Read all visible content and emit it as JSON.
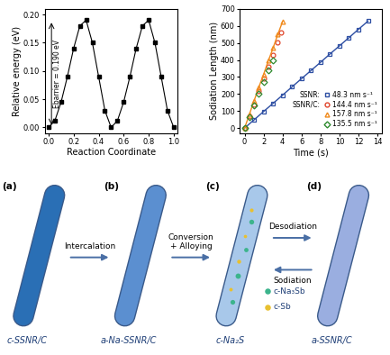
{
  "chart_data": [
    {
      "type": "line",
      "xlabel": "Reaction Coordinate",
      "ylabel": "Relative energy (eV)",
      "annotations": [
        {
          "text": "Ebarrier = 0.190 eV"
        }
      ],
      "x": [
        0.0,
        0.05,
        0.1,
        0.15,
        0.2,
        0.25,
        0.3,
        0.35,
        0.4,
        0.45,
        0.5,
        0.55,
        0.6,
        0.65,
        0.7,
        0.75,
        0.8,
        0.85,
        0.9,
        0.95,
        1.0
      ],
      "values": [
        0.0,
        0.012,
        0.045,
        0.09,
        0.14,
        0.18,
        0.19,
        0.15,
        0.09,
        0.03,
        0.0,
        0.012,
        0.045,
        0.09,
        0.14,
        0.18,
        0.19,
        0.15,
        0.09,
        0.03,
        0.0
      ],
      "color": "#000000",
      "marker": "square",
      "line_style": "solid",
      "xlim": [
        -0.03,
        1.03
      ],
      "ylim": [
        -0.01,
        0.21
      ],
      "xticks": [
        0.0,
        0.2,
        0.4,
        0.6,
        0.8,
        1.0
      ],
      "yticks": [
        {
          "value": 0.0,
          "label": "0.00"
        },
        {
          "value": 0.05,
          "label": "0.05"
        },
        {
          "value": 0.1,
          "label": "0.10"
        },
        {
          "value": 0.15,
          "label": "0.15"
        },
        {
          "value": 0.2,
          "label": "0.20"
        }
      ]
    },
    {
      "type": "line",
      "xlabel": "Time (s)",
      "ylabel": "Sodiation Length (nm)",
      "legend": "lower right",
      "xlim": [
        -0.5,
        14.5
      ],
      "ylim": [
        -30,
        700
      ],
      "xticks": [
        0,
        2,
        4,
        6,
        8,
        10,
        12,
        14
      ],
      "yticks": [
        0,
        100,
        200,
        300,
        400,
        500,
        600,
        700
      ],
      "series": [
        {
          "name": "48.3 nm s⁻¹",
          "group": "SSNR:",
          "color": "#2e4fa3",
          "marker": "square",
          "line_style": "solid",
          "x": [
            0,
            1,
            2,
            3,
            4,
            5,
            6,
            7,
            8,
            9,
            10,
            11,
            12,
            13
          ],
          "values": [
            0,
            48,
            97,
            145,
            193,
            242,
            290,
            338,
            386,
            435,
            483,
            531,
            580,
            628
          ]
        },
        {
          "name": "144.4 nm s⁻¹",
          "group": "SSNR/C:",
          "color": "#e0452b",
          "marker": "circle",
          "line_style": "none",
          "x": [
            0,
            0.5,
            1,
            1.5,
            2,
            2.5,
            3,
            3.5,
            3.8
          ],
          "values": [
            0,
            70,
            140,
            215,
            290,
            360,
            430,
            505,
            560
          ]
        },
        {
          "name": "157.8 nm s⁻¹",
          "color": "#f08a1c",
          "marker": "triangle",
          "line_style": "solid",
          "x": [
            0,
            0.5,
            1,
            1.5,
            2,
            2.5,
            3,
            3.5,
            4
          ],
          "values": [
            0,
            80,
            160,
            240,
            315,
            395,
            470,
            550,
            625
          ]
        },
        {
          "name": "135.5 nm s⁻¹",
          "color": "#2e8b2e",
          "marker": "diamond",
          "line_style": "none",
          "x": [
            0,
            0.5,
            1,
            1.5,
            2,
            2.5,
            3
          ],
          "values": [
            0,
            65,
            135,
            200,
            270,
            340,
            400
          ]
        }
      ]
    }
  ],
  "diagram": {
    "stages": [
      {
        "tag": "(a)",
        "label": "c-SSNR/C",
        "color": "#2a6fb5"
      },
      {
        "tag": "(b)",
        "label": "a-Na-SSNR/C",
        "color": "#5b8fd0"
      },
      {
        "tag": "(c)",
        "label": "c-Na₂S",
        "color": "#a8c8ea",
        "phases": [
          {
            "label": "c-Na₃Sb",
            "color": "#3cb48c"
          },
          {
            "label": "c-Sb",
            "color": "#e8c030"
          }
        ]
      },
      {
        "tag": "(d)",
        "label": "a-SSNR/C",
        "color": "#9aaee0"
      }
    ],
    "transitions": [
      {
        "label": "Intercalation",
        "direction": "forward"
      },
      {
        "label": "Conversion\n+ Alloying",
        "direction": "forward"
      },
      {
        "label": "Desodiation",
        "direction": "forward"
      },
      {
        "label": "Sodiation",
        "direction": "backward"
      }
    ]
  }
}
